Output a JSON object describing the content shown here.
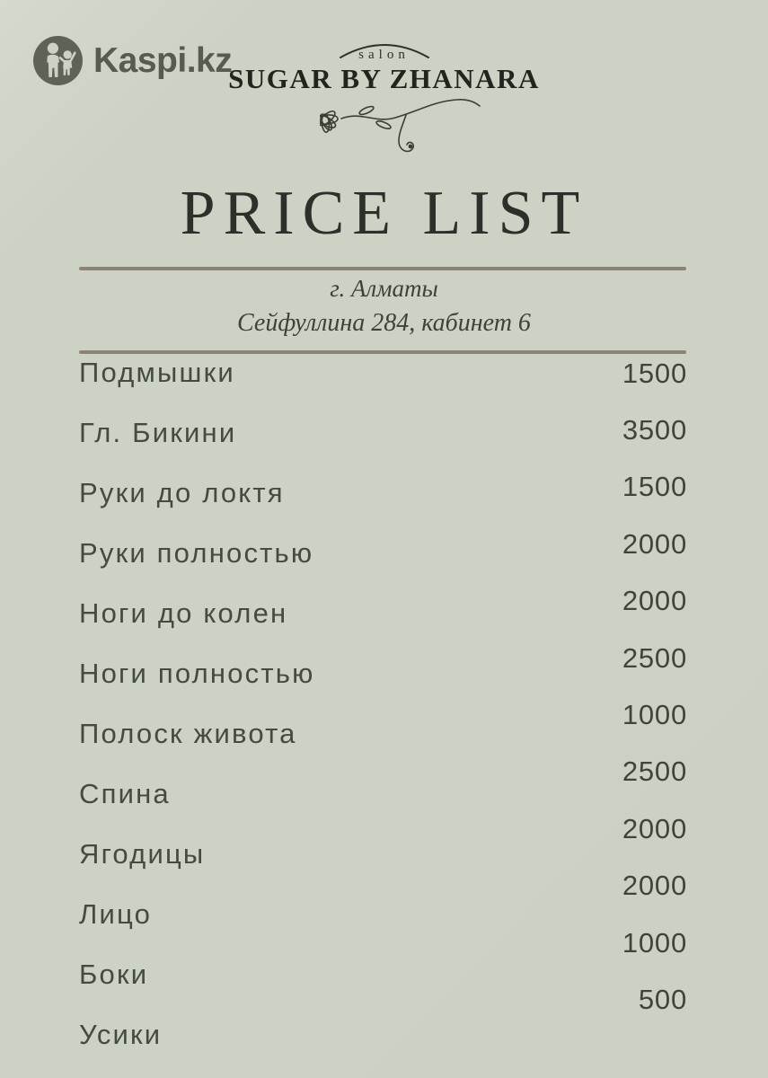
{
  "watermark": {
    "label": "Kaspi.kz"
  },
  "brand": {
    "tagline": "salon",
    "name": "SUGAR BY ZHANARA"
  },
  "title": "PRICE LIST",
  "location": {
    "city": "г. Алматы",
    "address": "Сейфуллина 284, кабинет 6"
  },
  "services": [
    {
      "name": "Подмышки",
      "price": "1500"
    },
    {
      "name": "Гл. Бикини",
      "price": "3500"
    },
    {
      "name": "Руки до локтя",
      "price": "1500"
    },
    {
      "name": "Руки полностью",
      "price": "2000"
    },
    {
      "name": "Ноги до колен",
      "price": "2000"
    },
    {
      "name": "Ноги полностью",
      "price": "2500"
    },
    {
      "name": "Полоск живота",
      "price": "1000"
    },
    {
      "name": "Спина",
      "price": "2500"
    },
    {
      "name": "Ягодицы",
      "price": "2000"
    },
    {
      "name": "Лицо",
      "price": "2000"
    },
    {
      "name": "Боки",
      "price": "1000"
    },
    {
      "name": "Усики",
      "price": "500"
    }
  ],
  "colors": {
    "background": "#ccd2c4",
    "ink": "#2b302a",
    "service_text": "#454b41",
    "divider": "#8c8276",
    "kaspi": "#565c50"
  }
}
